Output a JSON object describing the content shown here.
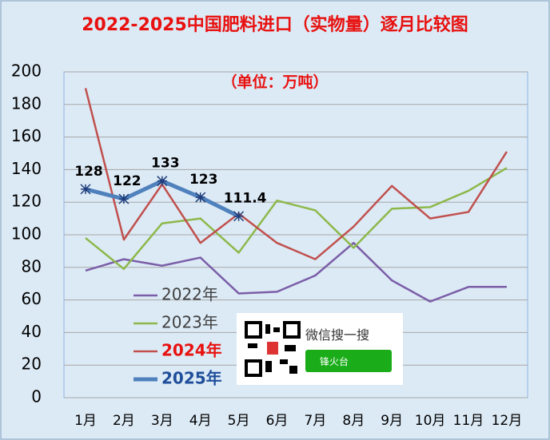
{
  "chart_data": {
    "type": "line",
    "title": "2022-2025中国肥料进口（实物量）逐月比较图",
    "subtitle": "（单位：万吨）",
    "categories": [
      "1月",
      "2月",
      "3月",
      "4月",
      "5月",
      "6月",
      "7月",
      "8月",
      "9月",
      "10月",
      "11月",
      "12月"
    ],
    "ylim": [
      0,
      200
    ],
    "yticks": [
      0,
      20,
      40,
      60,
      80,
      100,
      120,
      140,
      160,
      180,
      200
    ],
    "grid": true,
    "series": [
      {
        "name": "2022年",
        "color": "#7b5ea7",
        "values": [
          78,
          85,
          81,
          86,
          64,
          65,
          75,
          95,
          72,
          59,
          68,
          68
        ]
      },
      {
        "name": "2023年",
        "color": "#8db84a",
        "values": [
          98,
          79,
          107,
          110,
          89,
          121,
          115,
          92,
          116,
          117,
          127,
          141
        ]
      },
      {
        "name": "2024年",
        "color": "#c0504d",
        "values": [
          190,
          97,
          131,
          95,
          113,
          95,
          85,
          105,
          130,
          110,
          114,
          151
        ]
      },
      {
        "name": "2025年",
        "color": "#4f81bd",
        "values": [
          128,
          122,
          133,
          123,
          111.4,
          null,
          null,
          null,
          null,
          null,
          null,
          null
        ]
      }
    ]
  },
  "watermark": {
    "search": "微信搜一搜",
    "account": "锋火台"
  }
}
